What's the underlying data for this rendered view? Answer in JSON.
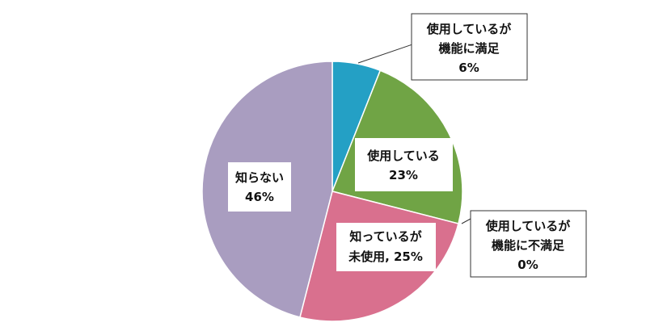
{
  "chart_data": {
    "type": "pie",
    "slices": [
      {
        "line1": "使用しているが",
        "line2": "機能に満足",
        "value_label": "6%",
        "value": 6,
        "color": "#24a0c5"
      },
      {
        "line1": "使用している",
        "line2": "",
        "value_label": "23%",
        "value": 23,
        "color": "#70a445"
      },
      {
        "line1": "使用しているが",
        "line2": "機能に不満足",
        "value_label": "0%",
        "value": 0,
        "color": "#8b5f9a"
      },
      {
        "line1": "知っているが",
        "line2": "未使用, 25%",
        "value_label": "",
        "value": 25,
        "color": "#d9708e"
      },
      {
        "line1": "知らない",
        "line2": "",
        "value_label": "46%",
        "value": 46,
        "color": "#a99dc0"
      }
    ]
  }
}
